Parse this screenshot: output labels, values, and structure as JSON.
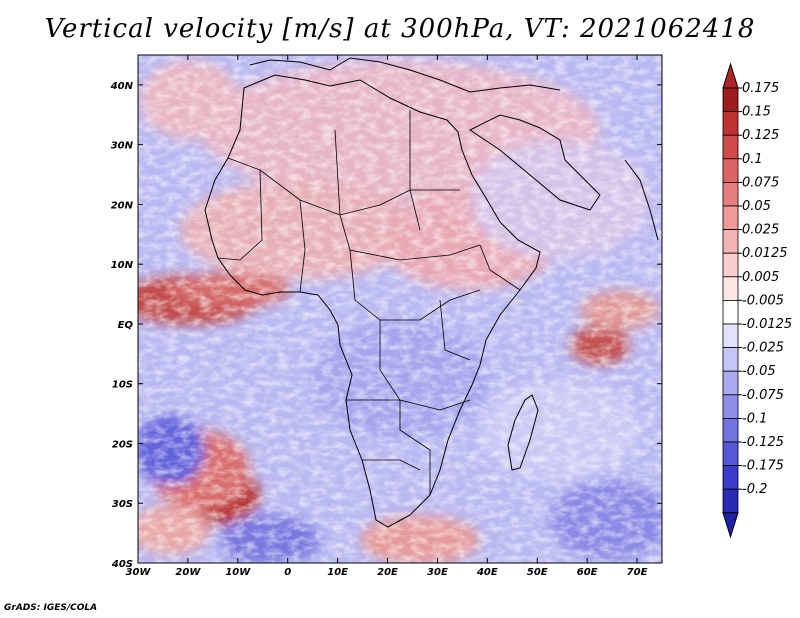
{
  "title": "Vertical velocity [m/s] at 300hPa, VT: 2021062418",
  "credit": "GrADS: IGES/COLA",
  "map": {
    "lon_range": [
      -30,
      75
    ],
    "lat_range": [
      -40,
      45
    ],
    "lon_ticks": [
      {
        "value": -30,
        "label": "30W"
      },
      {
        "value": -20,
        "label": "20W"
      },
      {
        "value": -10,
        "label": "10W"
      },
      {
        "value": 0,
        "label": "0"
      },
      {
        "value": 10,
        "label": "10E"
      },
      {
        "value": 20,
        "label": "20E"
      },
      {
        "value": 30,
        "label": "30E"
      },
      {
        "value": 40,
        "label": "40E"
      },
      {
        "value": 50,
        "label": "50E"
      },
      {
        "value": 60,
        "label": "60E"
      },
      {
        "value": 70,
        "label": "70E"
      }
    ],
    "lat_ticks": [
      {
        "value": 40,
        "label": "40N"
      },
      {
        "value": 30,
        "label": "30N"
      },
      {
        "value": 20,
        "label": "20N"
      },
      {
        "value": 10,
        "label": "10N"
      },
      {
        "value": 0,
        "label": "EQ"
      },
      {
        "value": -10,
        "label": "10S"
      },
      {
        "value": -20,
        "label": "20S"
      },
      {
        "value": -30,
        "label": "30S"
      },
      {
        "value": -40,
        "label": "40S"
      }
    ]
  },
  "colorbar": {
    "levels": [
      {
        "label": "0.175",
        "color": "#a01c1c"
      },
      {
        "label": "0.15",
        "color": "#c03232"
      },
      {
        "label": "0.125",
        "color": "#d04a4a"
      },
      {
        "label": "0.1",
        "color": "#de6464"
      },
      {
        "label": "0.075",
        "color": "#e77e7e"
      },
      {
        "label": "0.05",
        "color": "#ef9999"
      },
      {
        "label": "0.025",
        "color": "#f5b4b4"
      },
      {
        "label": "0.0125",
        "color": "#f9cece"
      },
      {
        "label": "0.005",
        "color": "#fce6e6"
      },
      {
        "label": "-0.005",
        "color": "#ffffff"
      },
      {
        "label": "-0.0125",
        "color": "#e2e2fb"
      },
      {
        "label": "-0.025",
        "color": "#c6c6f6"
      },
      {
        "label": "-0.05",
        "color": "#aaaaf0"
      },
      {
        "label": "-0.075",
        "color": "#8e8eea"
      },
      {
        "label": "-0.1",
        "color": "#7272e2"
      },
      {
        "label": "-0.125",
        "color": "#5656d8"
      },
      {
        "label": "-0.175",
        "color": "#3a3acb"
      },
      {
        "label": "-0.2",
        "color": "#2a2ab8"
      }
    ],
    "top_color": "#b02626",
    "bottom_color": "#2020a8"
  }
}
